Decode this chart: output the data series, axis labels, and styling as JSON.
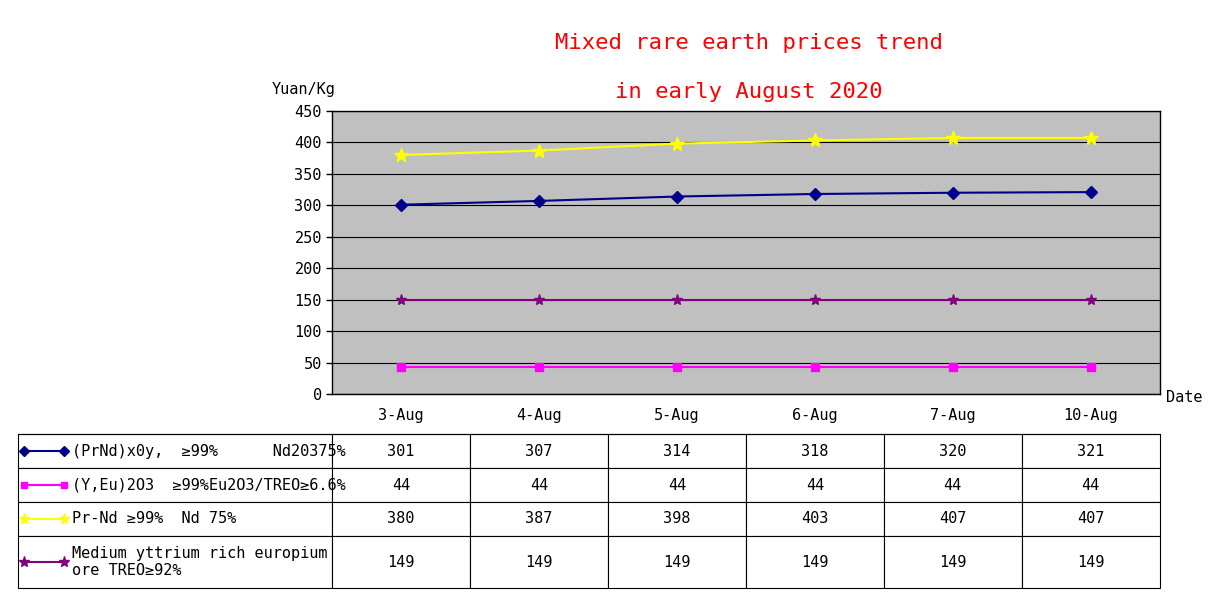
{
  "title_line1": "Mixed rare earth prices trend",
  "title_line2": "in early August 2020",
  "title_color": "#FF0000",
  "ylabel": "Yuan/Kg",
  "xlabel": "Date",
  "x_labels": [
    "3-Aug",
    "4-Aug",
    "5-Aug",
    "6-Aug",
    "7-Aug",
    "10-Aug"
  ],
  "x_values": [
    0,
    1,
    2,
    3,
    4,
    5
  ],
  "ylim": [
    0,
    450
  ],
  "yticks": [
    0,
    50,
    100,
    150,
    200,
    250,
    300,
    350,
    400,
    450
  ],
  "series": [
    {
      "label": "(PrNd)xOy,  ≥99%      Nd20375%",
      "values": [
        301,
        307,
        314,
        318,
        320,
        321
      ],
      "color": "#00008B",
      "marker": "D",
      "markersize": 6,
      "linestyle": "-",
      "linewidth": 1.5
    },
    {
      "label": "(Y,Eu)2O3  ≥99%Eu2O3/TREO≥6.6%",
      "values": [
        44,
        44,
        44,
        44,
        44,
        44
      ],
      "color": "#FF00FF",
      "marker": "s",
      "markersize": 6,
      "linestyle": "-",
      "linewidth": 1.5
    },
    {
      "label": "Pr-Nd ≥99%  Nd 75%",
      "values": [
        380,
        387,
        398,
        403,
        407,
        407
      ],
      "color": "#FFFF00",
      "marker": "*",
      "markersize": 10,
      "linestyle": "-",
      "linewidth": 1.5
    },
    {
      "label": "Medium yttrium rich europium ore TREO≥92%",
      "values": [
        149,
        149,
        149,
        149,
        149,
        149
      ],
      "color": "#800080",
      "marker": "*",
      "markersize": 8,
      "linestyle": "-",
      "linewidth": 1.5
    }
  ],
  "table_label_col": [
    "(PrNd)x0y,  ≥99%      Nd20375%",
    "(Y,Eu)2O3  ≥99%Eu2O3/TREO≥6.6%",
    "Pr-Nd ≥99%  Nd 75%",
    "Medium yttrium rich europium\nore TREO≥92%"
  ],
  "table_values": [
    [
      "301",
      "307",
      "314",
      "318",
      "320",
      "321"
    ],
    [
      "44",
      "44",
      "44",
      "44",
      "44",
      "44"
    ],
    [
      "380",
      "387",
      "398",
      "403",
      "407",
      "407"
    ],
    [
      "149",
      "149",
      "149",
      "149",
      "149",
      "149"
    ]
  ],
  "table_marker_styles": [
    "D",
    "s",
    "*",
    "*"
  ],
  "table_line_colors": [
    "#00008B",
    "#FF00FF",
    "#FFFF00",
    "#800080"
  ],
  "plot_bg_color": "#C0C0C0",
  "fig_bg_color": "#FFFFFF",
  "grid_color": "#000000"
}
